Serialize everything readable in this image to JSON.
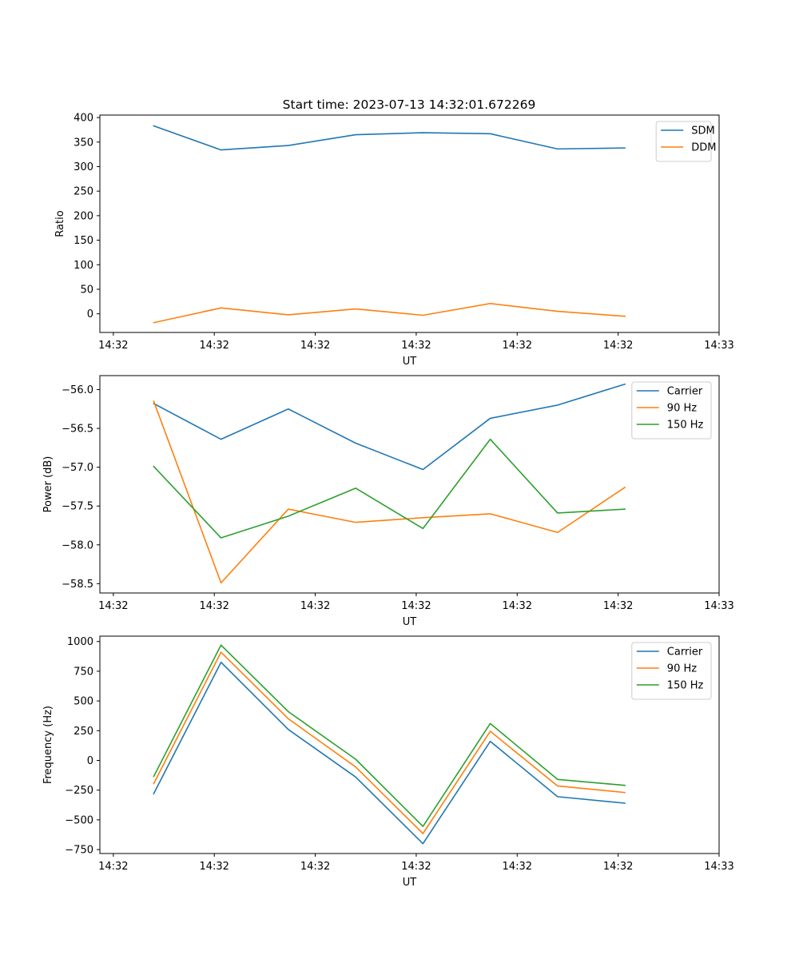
{
  "figure_title": "Start time: 2023-07-13 14:32:01.672269",
  "colors": {
    "blue": "#1f77b4",
    "orange": "#ff7f0e",
    "green": "#2ca02c"
  },
  "chart_data": [
    {
      "type": "line",
      "title": "Start time: 2023-07-13 14:32:01.672269",
      "xlabel": "UT",
      "ylabel": "Ratio",
      "x": [
        1,
        2,
        3,
        4,
        5,
        6,
        7,
        8
      ],
      "xlim": [
        0.2,
        9.4
      ],
      "xticks": [
        0.4,
        1.9,
        3.4,
        4.9,
        6.4,
        7.9,
        9.4
      ],
      "xtick_labels": [
        "14:32",
        "14:32",
        "14:32",
        "14:32",
        "14:32",
        "14:32",
        "14:33"
      ],
      "ylim": [
        -38,
        405
      ],
      "yticks": [
        0,
        50,
        100,
        150,
        200,
        250,
        300,
        350,
        400
      ],
      "ytick_labels": [
        "0",
        "50",
        "100",
        "150",
        "200",
        "250",
        "300",
        "350",
        "400"
      ],
      "legend_position": "top-right",
      "series": [
        {
          "name": "SDM",
          "color": "#1f77b4",
          "values": [
            383,
            334,
            343,
            365,
            369,
            367,
            336,
            338
          ]
        },
        {
          "name": "DDM",
          "color": "#ff7f0e",
          "values": [
            -18,
            12,
            -2,
            10,
            -3,
            21,
            5,
            -5
          ]
        }
      ]
    },
    {
      "type": "line",
      "title": "",
      "xlabel": "UT",
      "ylabel": "Power (dB)",
      "x": [
        1,
        2,
        3,
        4,
        5,
        6,
        7,
        8
      ],
      "xlim": [
        0.2,
        9.4
      ],
      "xticks": [
        0.4,
        1.9,
        3.4,
        4.9,
        6.4,
        7.9,
        9.4
      ],
      "xtick_labels": [
        "14:32",
        "14:32",
        "14:32",
        "14:32",
        "14:32",
        "14:32",
        "14:33"
      ],
      "ylim": [
        -58.62,
        -55.82
      ],
      "yticks": [
        -58.5,
        -58.0,
        -57.5,
        -57.0,
        -56.5,
        -56.0
      ],
      "ytick_labels": [
        "−58.5",
        "−58.0",
        "−57.5",
        "−57.0",
        "−56.5",
        "−56.0"
      ],
      "legend_position": "top-right",
      "series": [
        {
          "name": "Carrier",
          "color": "#1f77b4",
          "values": [
            -56.18,
            -56.64,
            -56.25,
            -56.69,
            -57.03,
            -56.37,
            -56.2,
            -55.93
          ]
        },
        {
          "name": "90 Hz",
          "color": "#ff7f0e",
          "values": [
            -56.15,
            -58.49,
            -57.54,
            -57.71,
            -57.65,
            -57.6,
            -57.84,
            -57.26
          ]
        },
        {
          "name": "150 Hz",
          "color": "#2ca02c",
          "values": [
            -56.99,
            -57.91,
            -57.63,
            -57.27,
            -57.79,
            -56.64,
            -57.59,
            -57.54
          ]
        }
      ]
    },
    {
      "type": "line",
      "title": "",
      "xlabel": "UT",
      "ylabel": "Frequency (Hz)",
      "x": [
        1,
        2,
        3,
        4,
        5,
        6,
        7,
        8
      ],
      "xlim": [
        0.2,
        9.4
      ],
      "xticks": [
        0.4,
        1.9,
        3.4,
        4.9,
        6.4,
        7.9,
        9.4
      ],
      "xtick_labels": [
        "14:32",
        "14:32",
        "14:32",
        "14:32",
        "14:32",
        "14:32",
        "14:33"
      ],
      "ylim": [
        -783,
        1045
      ],
      "yticks": [
        -750,
        -500,
        -250,
        0,
        250,
        500,
        750,
        1000
      ],
      "ytick_labels": [
        "−750",
        "−500",
        "−250",
        "0",
        "250",
        "500",
        "750",
        "1000"
      ],
      "legend_position": "top-right",
      "series": [
        {
          "name": "Carrier",
          "color": "#1f77b4",
          "values": [
            -280,
            825,
            260,
            -140,
            -700,
            160,
            -305,
            -360
          ]
        },
        {
          "name": "90 Hz",
          "color": "#ff7f0e",
          "values": [
            -195,
            910,
            350,
            -55,
            -615,
            245,
            -215,
            -270
          ]
        },
        {
          "name": "150 Hz",
          "color": "#2ca02c",
          "values": [
            -135,
            970,
            410,
            10,
            -555,
            310,
            -160,
            -210
          ]
        }
      ]
    }
  ]
}
